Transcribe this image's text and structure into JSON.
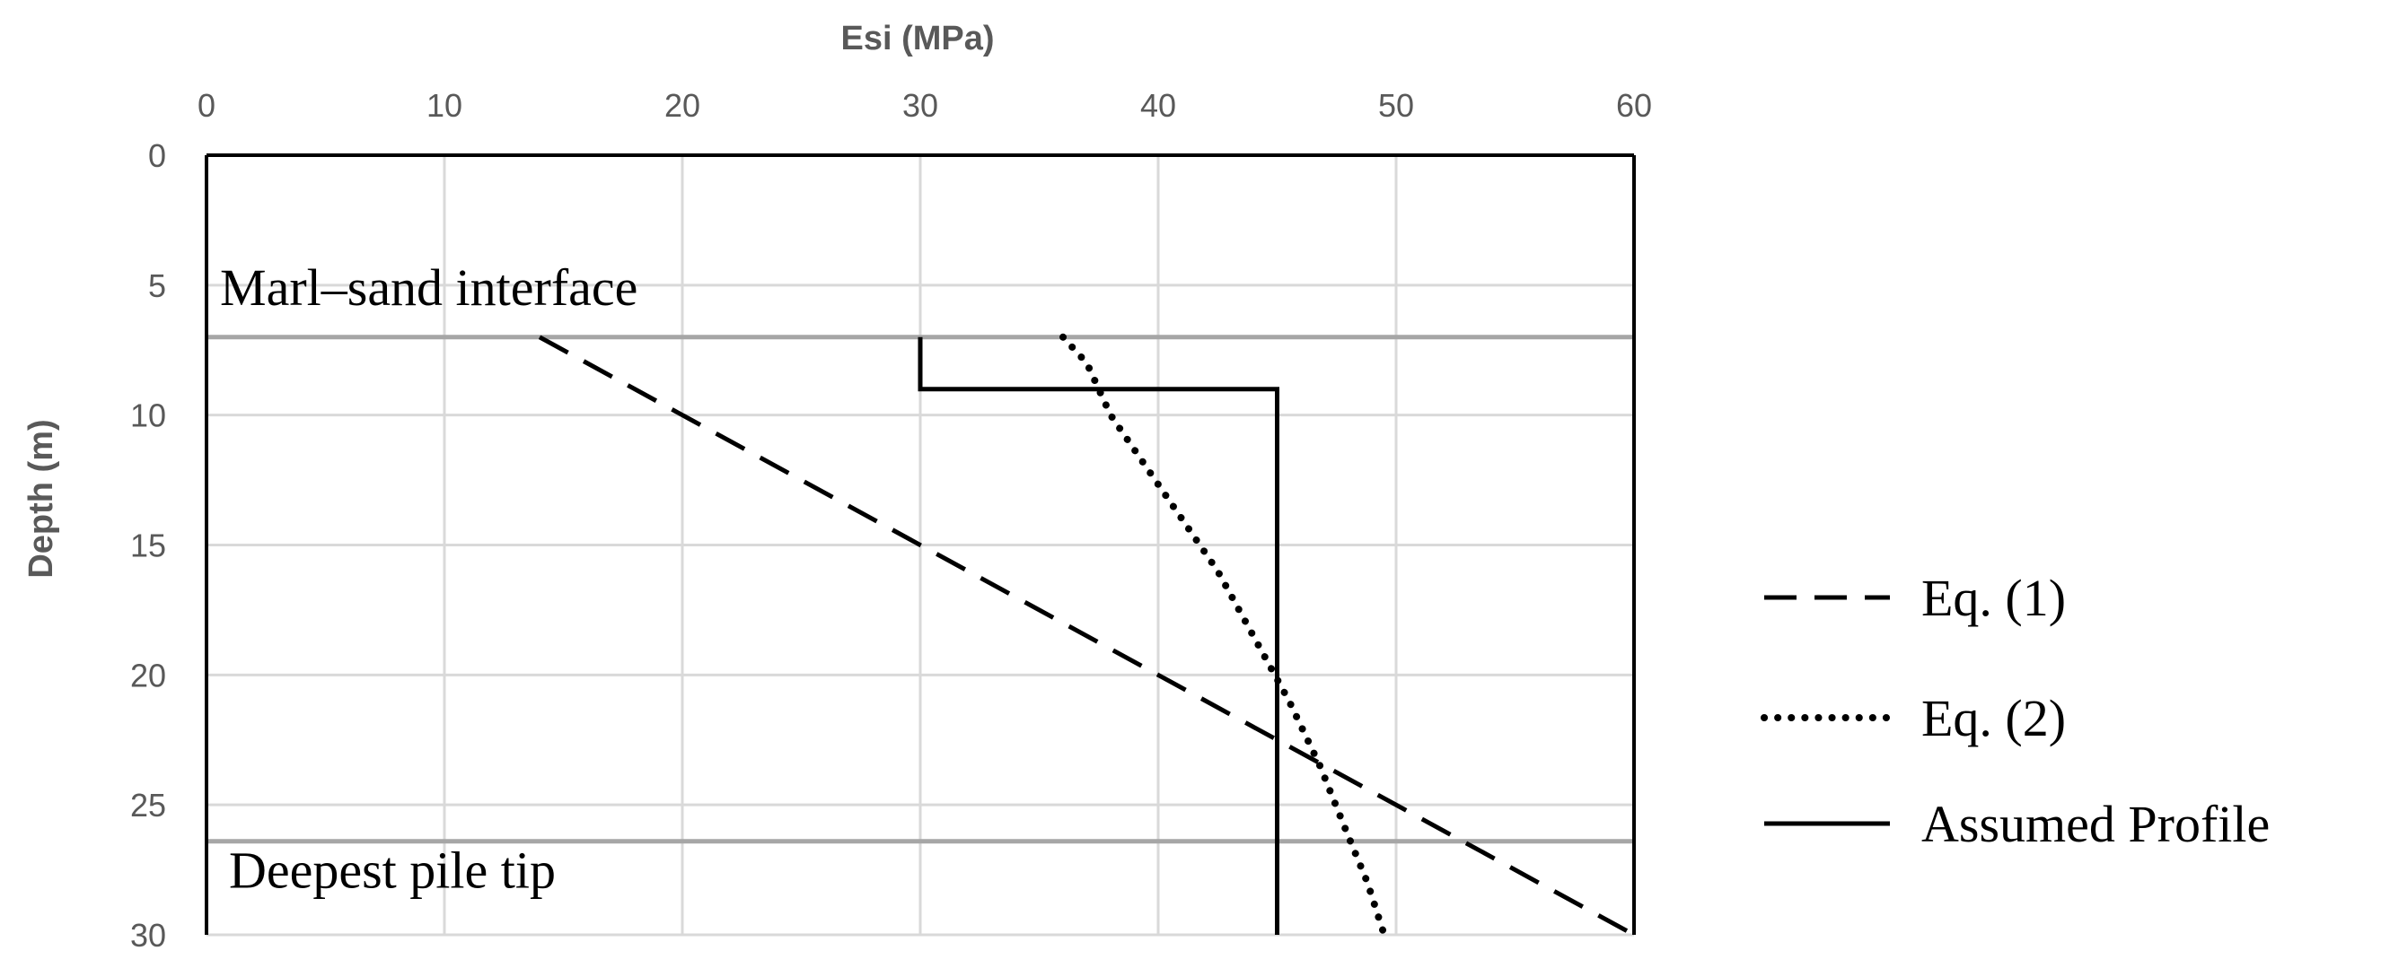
{
  "chart_data": {
    "type": "line",
    "title": "",
    "xlabel": "Esi (MPa)",
    "ylabel": "Depth (m)",
    "xlim": [
      0,
      60
    ],
    "ylim": [
      0,
      30
    ],
    "y_reversed": true,
    "x_axis_position": "top",
    "x_ticks": [
      0,
      10,
      20,
      30,
      40,
      50,
      60
    ],
    "y_ticks": [
      0,
      5,
      10,
      15,
      20,
      25,
      30
    ],
    "x_tick_labels": [
      "0",
      "10",
      "20",
      "30",
      "40",
      "50",
      "60"
    ],
    "y_tick_labels": [
      "0",
      "5",
      "10",
      "15",
      "20",
      "25",
      "30"
    ],
    "grid": true,
    "legend_position": "right",
    "series": [
      {
        "name": "Eq. (1)",
        "style": "dashed",
        "color": "#000000",
        "points": [
          [
            14,
            7
          ],
          [
            60,
            30
          ]
        ]
      },
      {
        "name": "Eq. (2)",
        "style": "dotted",
        "color": "#000000",
        "points": [
          [
            36,
            7
          ],
          [
            37,
            8
          ],
          [
            38,
            10
          ],
          [
            39.5,
            12
          ],
          [
            41,
            14
          ],
          [
            42.5,
            16
          ],
          [
            44,
            18.5
          ],
          [
            45.5,
            21
          ],
          [
            46.8,
            23.5
          ],
          [
            47.9,
            26
          ],
          [
            48.8,
            28
          ],
          [
            49.5,
            30
          ]
        ]
      },
      {
        "name": "Assumed Profile",
        "style": "solid",
        "color": "#000000",
        "points": [
          [
            30,
            7
          ],
          [
            30,
            9
          ],
          [
            45,
            9
          ],
          [
            45,
            30
          ]
        ]
      }
    ],
    "reference_lines": [
      {
        "depth": 7,
        "label": "Marl–sand interface",
        "color": "#a6a6a6"
      },
      {
        "depth": 26.4,
        "label": "Deepest pile tip",
        "color": "#a6a6a6"
      }
    ]
  }
}
